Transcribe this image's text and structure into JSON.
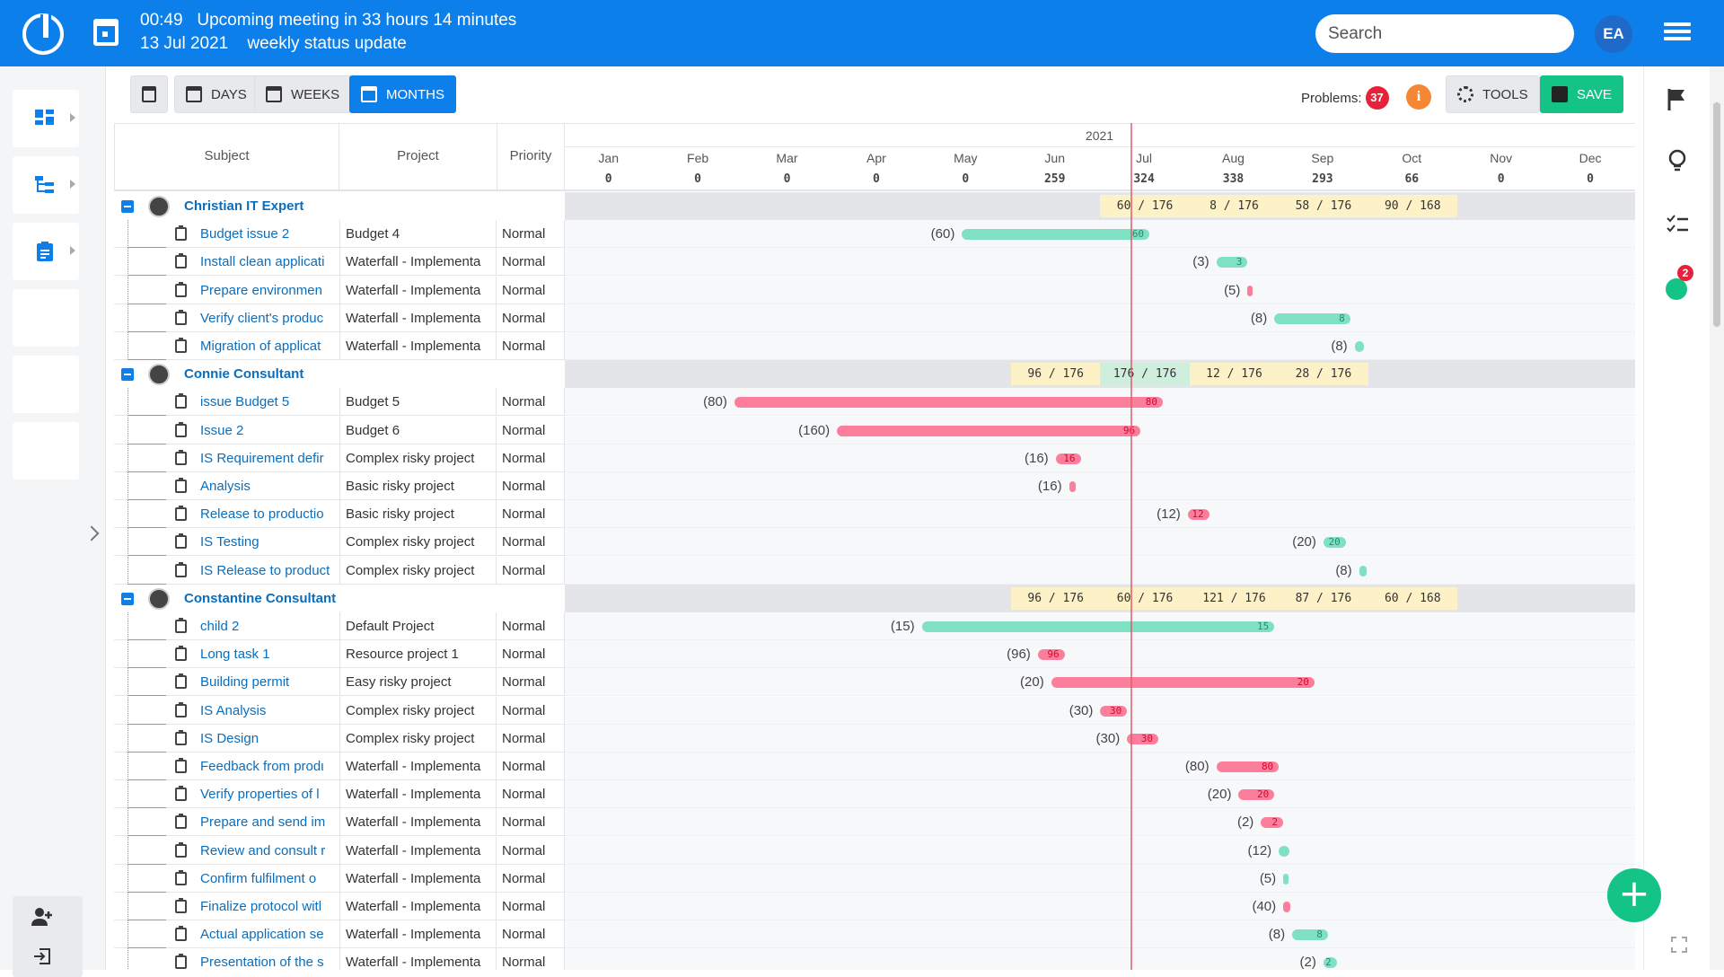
{
  "topbar": {
    "time": "00:49",
    "meeting": "Upcoming meeting in 33 hours 14 minutes",
    "date": "13 Jul 2021",
    "meeting_title": "weekly status update",
    "search_placeholder": "Search",
    "avatar_initials": "EA",
    "accent": "#0d7fea"
  },
  "toolbar": {
    "days": "DAYS",
    "weeks": "WEEKS",
    "months": "MONTHS",
    "problems_label": "Problems:",
    "problems_count": "37",
    "info": "i",
    "tools": "TOOLS",
    "save": "SAVE"
  },
  "rightbar": {
    "notification_count": "2"
  },
  "fab": "+",
  "header": {
    "subject": "Subject",
    "project": "Project",
    "priority": "Priority",
    "year": "2021",
    "months": [
      "Jan",
      "Feb",
      "Mar",
      "Apr",
      "May",
      "Jun",
      "Jul",
      "Aug",
      "Sep",
      "Oct",
      "Nov",
      "Dec"
    ],
    "totals": [
      "0",
      "0",
      "0",
      "0",
      "0",
      "259",
      "324",
      "338",
      "293",
      "66",
      "0",
      "0"
    ]
  },
  "groups": [
    {
      "name": "Christian IT Expert",
      "summaries": [
        {
          "month": 6,
          "text": "60 / 176"
        },
        {
          "month": 7,
          "text": "8 / 176"
        },
        {
          "month": 8,
          "text": "58 / 176"
        },
        {
          "month": 9,
          "text": "90 / 168"
        }
      ],
      "tasks": [
        {
          "subject": "Budget issue 2",
          "project": "Budget 4",
          "priority": "Normal",
          "est": "(60)",
          "bars": [
            {
              "start": 4.45,
              "end": 6.55,
              "color": "g",
              "label": "60"
            }
          ]
        },
        {
          "subject": "Install clean applicati",
          "project": "Waterfall - Implementa",
          "priority": "Normal",
          "est": "(3)",
          "bars": [
            {
              "start": 7.3,
              "end": 7.65,
              "color": "g",
              "label": "3"
            }
          ]
        },
        {
          "subject": "Prepare environmen",
          "project": "Waterfall - Implementa",
          "priority": "Normal",
          "est": "(5)",
          "bars": [
            {
              "start": 7.65,
              "end": 7.7,
              "color": "r",
              "label": ""
            }
          ]
        },
        {
          "subject": "Verify client's produc",
          "project": "Waterfall - Implementa",
          "priority": "Normal",
          "est": "(8)",
          "bars": [
            {
              "start": 7.95,
              "end": 8.8,
              "color": "g",
              "label": "8"
            }
          ]
        },
        {
          "subject": "Migration of applicat",
          "project": "Waterfall - Implementa",
          "priority": "Normal",
          "est": "(8)",
          "bars": [
            {
              "start": 8.85,
              "end": 8.95,
              "color": "g",
              "label": ""
            }
          ]
        }
      ]
    },
    {
      "name": "Connie Consultant",
      "summaries": [
        {
          "month": 5,
          "text": "96 / 176"
        },
        {
          "month": 6,
          "text": "176 / 176",
          "ok": true
        },
        {
          "month": 7,
          "text": "12 / 176"
        },
        {
          "month": 8,
          "text": "28 / 176",
          "warn": true
        }
      ],
      "tasks": [
        {
          "subject": "issue Budget 5",
          "project": "Budget 5",
          "priority": "Normal",
          "est": "(80)",
          "bars": [
            {
              "start": 1.9,
              "end": 6.7,
              "color": "r",
              "label": "80"
            }
          ]
        },
        {
          "subject": "Issue 2",
          "project": "Budget 6",
          "priority": "Normal",
          "est": "(160)",
          "bars": [
            {
              "start": 3.05,
              "end": 6.45,
              "color": "r",
              "label": "96"
            }
          ]
        },
        {
          "subject": "IS Requirement defir",
          "project": "Complex risky project",
          "priority": "Normal",
          "est": "(16)",
          "bars": [
            {
              "start": 5.5,
              "end": 5.78,
              "color": "r",
              "label": "16"
            }
          ]
        },
        {
          "subject": "Analysis",
          "project": "Basic risky project",
          "priority": "Normal",
          "est": "(16)",
          "bars": [
            {
              "start": 5.65,
              "end": 5.72,
              "color": "r",
              "label": ""
            }
          ]
        },
        {
          "subject": "Release to productio",
          "project": "Basic risky project",
          "priority": "Normal",
          "est": "(12)",
          "bars": [
            {
              "start": 6.98,
              "end": 7.22,
              "color": "r",
              "label": "12"
            }
          ]
        },
        {
          "subject": "IS Testing",
          "project": "Complex risky project",
          "priority": "Normal",
          "est": "(20)",
          "bars": [
            {
              "start": 8.5,
              "end": 8.75,
              "color": "g",
              "label": "20"
            }
          ]
        },
        {
          "subject": "IS Release to product",
          "project": "Complex risky project",
          "priority": "Normal",
          "est": "(8)",
          "bars": [
            {
              "start": 8.9,
              "end": 8.98,
              "color": "g",
              "label": ""
            }
          ]
        }
      ]
    },
    {
      "name": "Constantine Consultant",
      "summaries": [
        {
          "month": 5,
          "text": "96 / 176"
        },
        {
          "month": 6,
          "text": "60 / 176"
        },
        {
          "month": 7,
          "text": "121 / 176"
        },
        {
          "month": 8,
          "text": "87 / 176"
        },
        {
          "month": 9,
          "text": "60 / 168"
        }
      ],
      "tasks": [
        {
          "subject": "child 2",
          "project": "Default Project",
          "priority": "Normal",
          "est": "(15)",
          "bars": [
            {
              "start": 4.0,
              "end": 7.95,
              "color": "g",
              "label": "15"
            }
          ]
        },
        {
          "subject": "Long task 1",
          "project": "Resource project 1",
          "priority": "Normal",
          "est": "(96)",
          "bars": [
            {
              "start": 5.3,
              "end": 5.6,
              "color": "r",
              "label": "96"
            }
          ]
        },
        {
          "subject": "Building permit",
          "project": "Easy risky project",
          "priority": "Normal",
          "est": "(20)",
          "bars": [
            {
              "start": 5.45,
              "end": 8.4,
              "color": "r",
              "label": "20"
            }
          ]
        },
        {
          "subject": "IS Analysis",
          "project": "Complex risky project",
          "priority": "Normal",
          "est": "(30)",
          "bars": [
            {
              "start": 6.0,
              "end": 6.3,
              "color": "r",
              "label": "30"
            }
          ]
        },
        {
          "subject": "IS Design",
          "project": "Complex risky project",
          "priority": "Normal",
          "est": "(30)",
          "bars": [
            {
              "start": 6.3,
              "end": 6.65,
              "color": "r",
              "label": "30"
            }
          ]
        },
        {
          "subject": "Feedback from prodι",
          "project": "Waterfall - Implementa",
          "priority": "Normal",
          "est": "(80)",
          "bars": [
            {
              "start": 7.3,
              "end": 8.0,
              "color": "r",
              "label": "80"
            }
          ]
        },
        {
          "subject": "Verify properties of l",
          "project": "Waterfall - Implementa",
          "priority": "Normal",
          "est": "(20)",
          "bars": [
            {
              "start": 7.55,
              "end": 7.95,
              "color": "r",
              "label": "20"
            }
          ]
        },
        {
          "subject": "Prepare and send im",
          "project": "Waterfall - Implementa",
          "priority": "Normal",
          "est": "(2)",
          "bars": [
            {
              "start": 7.8,
              "end": 8.05,
              "color": "r",
              "label": "2"
            }
          ]
        },
        {
          "subject": "Review and consult r",
          "project": "Waterfall - Implementa",
          "priority": "Normal",
          "est": "(12)",
          "bars": [
            {
              "start": 8.0,
              "end": 8.12,
              "color": "g",
              "label": ""
            }
          ]
        },
        {
          "subject": "Confirm fulfilment o",
          "project": "Waterfall - Implementa",
          "priority": "Normal",
          "est": "(5)",
          "bars": [
            {
              "start": 8.05,
              "end": 8.1,
              "color": "g",
              "label": ""
            }
          ]
        },
        {
          "subject": "Finalize protocol witl",
          "project": "Waterfall - Implementa",
          "priority": "Normal",
          "est": "(40)",
          "bars": [
            {
              "start": 8.05,
              "end": 8.13,
              "color": "r",
              "label": ""
            }
          ]
        },
        {
          "subject": "Actual application se",
          "project": "Waterfall - Implementa",
          "priority": "Normal",
          "est": "(8)",
          "bars": [
            {
              "start": 8.15,
              "end": 8.55,
              "color": "g",
              "label": "8"
            }
          ]
        },
        {
          "subject": "Presentation of the s",
          "project": "Waterfall - Implementa",
          "priority": "Normal",
          "est": "(2)",
          "bars": [
            {
              "start": 8.5,
              "end": 8.65,
              "color": "g",
              "label": "2"
            }
          ]
        }
      ]
    }
  ]
}
